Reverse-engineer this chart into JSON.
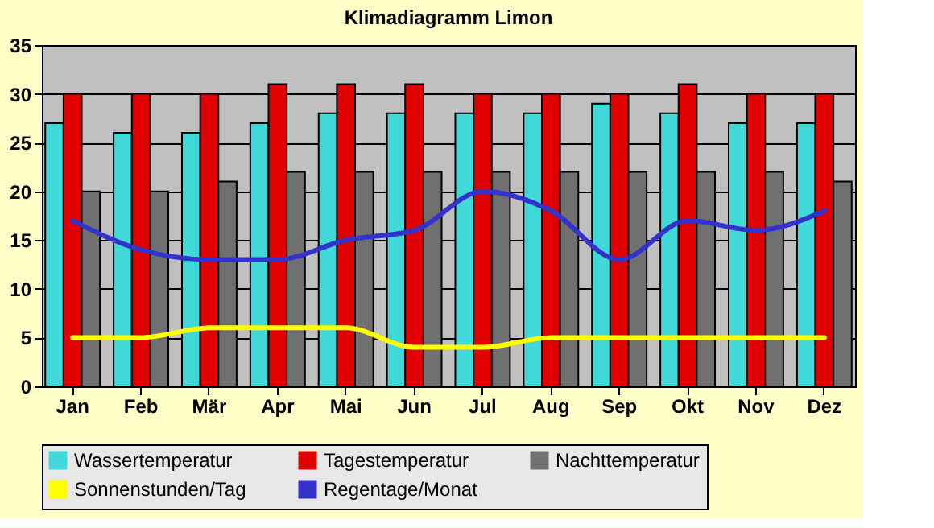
{
  "chart_data": {
    "type": "bar",
    "title": "Klimadiagramm Limon",
    "categories": [
      "Jan",
      "Feb",
      "Mär",
      "Apr",
      "Mai",
      "Jun",
      "Jul",
      "Aug",
      "Sep",
      "Okt",
      "Nov",
      "Dez"
    ],
    "series": [
      {
        "name": "Wassertemperatur",
        "color": "#40d8d8",
        "values": [
          27,
          26,
          26,
          27,
          28,
          28,
          28,
          28,
          29,
          28,
          27,
          27
        ]
      },
      {
        "name": "Tagestemperatur",
        "color": "#e00000",
        "values": [
          30,
          30,
          30,
          31,
          31,
          31,
          30,
          30,
          30,
          31,
          30,
          30
        ]
      },
      {
        "name": "Nachttemperatur",
        "color": "#707070",
        "values": [
          20,
          20,
          21,
          22,
          22,
          22,
          22,
          22,
          22,
          22,
          22,
          21
        ]
      },
      {
        "name": "Sonnenstunden/Tag",
        "color": "#ffff00",
        "type": "line",
        "values": [
          5,
          5,
          6,
          6,
          6,
          4,
          4,
          5,
          5,
          5,
          5,
          5
        ]
      },
      {
        "name": "Regentage/Monat",
        "color": "#3333cc",
        "type": "line",
        "values": [
          17,
          14,
          13,
          13,
          15,
          16,
          20,
          18,
          13,
          17,
          16,
          18
        ]
      }
    ],
    "ylim": [
      0,
      35
    ],
    "yticks": [
      0,
      5,
      10,
      15,
      20,
      25,
      30,
      35
    ],
    "grid": "y",
    "legend": "bottom",
    "marker": "none",
    "line_style": "solid"
  }
}
